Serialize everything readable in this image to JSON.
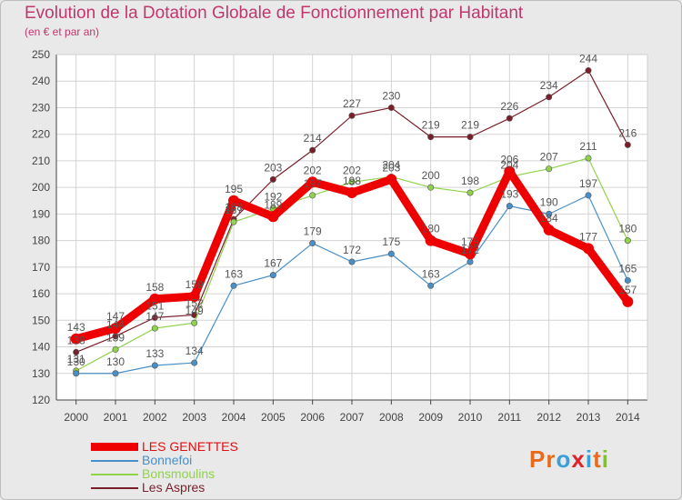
{
  "title": "Evolution de la Dotation Globale de Fonctionnement par Habitant",
  "subtitle": "(en € et par an)",
  "logo": {
    "text": "Proxiti",
    "letters": [
      "P",
      "r",
      "o",
      "x",
      "i",
      "t",
      "i"
    ],
    "colors": [
      "#e86b1c",
      "#e86b1c",
      "#3aa0d8",
      "#e0232a",
      "#3aa0d8",
      "#e86b1c",
      "#7fbf3a"
    ]
  },
  "chart_data": {
    "type": "line",
    "title": "Evolution de la Dotation Globale de Fonctionnement par Habitant",
    "subtitle": "(en € et par an)",
    "xlabel": "",
    "ylabel": "",
    "x": [
      2000,
      2001,
      2002,
      2003,
      2004,
      2005,
      2006,
      2007,
      2008,
      2009,
      2010,
      2011,
      2012,
      2013,
      2014
    ],
    "ylim": [
      120,
      250
    ],
    "yticks": [
      120,
      130,
      140,
      150,
      160,
      170,
      180,
      190,
      200,
      210,
      220,
      230,
      240,
      250
    ],
    "grid": true,
    "legend_position": "bottom-left",
    "series": [
      {
        "name": "Les Aspres",
        "color": "#7a1f2a",
        "values": [
          138,
          144,
          151,
          152,
          188,
          203,
          214,
          227,
          230,
          219,
          219,
          226,
          234,
          244,
          216
        ],
        "labels": [
          "138",
          "144",
          "151",
          "152",
          "188",
          "203",
          "214",
          "227",
          "230",
          "219",
          "219",
          "226",
          "234",
          "244",
          "216"
        ]
      },
      {
        "name": "Bonsmoulins",
        "color": "#8fd34a",
        "values": [
          131,
          139,
          147,
          149,
          187,
          192,
          197,
          202,
          204,
          200,
          198,
          204,
          207,
          211,
          180
        ],
        "labels": [
          "131",
          "139",
          "147",
          "149",
          "187",
          "192",
          "197",
          "202",
          "204",
          "200",
          "198",
          "204",
          "207",
          "211",
          "180"
        ]
      },
      {
        "name": "Bonnefoi",
        "color": "#4a90c8",
        "values": [
          130,
          130,
          133,
          134,
          163,
          167,
          179,
          172,
          175,
          163,
          172,
          193,
          190,
          197,
          165
        ],
        "labels": [
          "130",
          "130",
          "133",
          "134",
          "163",
          "167",
          "179",
          "172",
          "175",
          "163",
          "172",
          "193",
          "190",
          "197",
          "165"
        ]
      },
      {
        "name": "LES GENETTES",
        "color": "#ee0000",
        "values": [
          143,
          147,
          158,
          159,
          195,
          189,
          202,
          198,
          203,
          180,
          175,
          206,
          184,
          177,
          157
        ],
        "labels": [
          "143",
          "147",
          "158",
          "159",
          "195",
          "189",
          "202",
          "198",
          "203",
          "180",
          "175",
          "206",
          "184",
          "177",
          "157"
        ]
      }
    ],
    "legend": [
      "LES GENETTES",
      "Bonnefoi",
      "Bonsmoulins",
      "Les Aspres"
    ]
  }
}
